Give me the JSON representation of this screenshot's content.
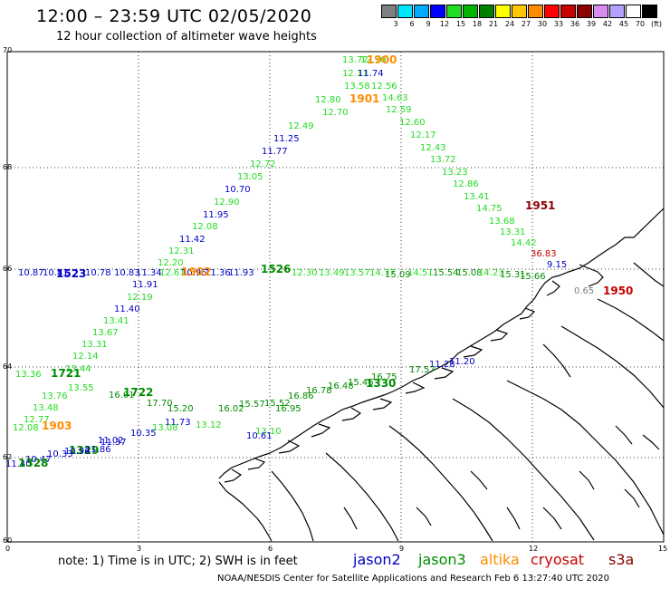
{
  "header": {
    "title": "12:00 – 23:59 UTC 02/05/2020",
    "subtitle": "12 hour collection of altimeter wave heights"
  },
  "colorbar": {
    "unit": "(ft)",
    "colors": [
      "#808080",
      "#00e5ff",
      "#00aaff",
      "#0000ff",
      "#22dd22",
      "#00b400",
      "#008000",
      "#ffff00",
      "#ffc800",
      "#ff8c00",
      "#ff0000",
      "#c80000",
      "#8b0000",
      "#d78cf0",
      "#b4a0ff",
      "#ffffff",
      "#000000"
    ],
    "labels": [
      "3",
      "6",
      "9",
      "12",
      "15",
      "18",
      "21",
      "24",
      "27",
      "30",
      "33",
      "36",
      "39",
      "42",
      "45",
      "70",
      "(ft)"
    ]
  },
  "axes": {
    "x_ticks": [
      "0",
      "3",
      "6",
      "9",
      "12",
      "15"
    ],
    "y_ticks": [
      "70",
      "68",
      "66",
      "64",
      "62",
      "60"
    ]
  },
  "footer": {
    "note": "note:  1) Time is in UTC;  2) SWH is in feet",
    "satellites": [
      {
        "name": "jason2",
        "color": "#0000c8"
      },
      {
        "name": "jason3",
        "color": "#008c00"
      },
      {
        "name": "altika",
        "color": "#ff8c00"
      },
      {
        "name": "cryosat",
        "color": "#c80000"
      },
      {
        "name": "s3a",
        "color": "#8b0000"
      }
    ],
    "credit": "NOAA/NESDIS Center for Satellite Applications and Research   Feb  6 13:27:40 UTC 2020"
  },
  "observations": [
    {
      "t": "13.72",
      "c": "#22dd22"
    },
    {
      "t": "12.70",
      "c": "#22dd22"
    },
    {
      "t": "1900",
      "c": "#ff8c00"
    },
    {
      "t": "12.11",
      "c": "#22dd22"
    },
    {
      "t": "11.74",
      "c": "#0000c8"
    },
    {
      "t": "13.58",
      "c": "#22dd22"
    },
    {
      "t": "12.56",
      "c": "#22dd22"
    },
    {
      "t": "12.80",
      "c": "#22dd22"
    },
    {
      "t": "1901",
      "c": "#ff8c00"
    },
    {
      "t": "14.63",
      "c": "#22dd22"
    },
    {
      "t": "12.70",
      "c": "#22dd22"
    },
    {
      "t": "12.59",
      "c": "#22dd22"
    },
    {
      "t": "12.49",
      "c": "#22dd22"
    },
    {
      "t": "12.60",
      "c": "#22dd22"
    },
    {
      "t": "11.25",
      "c": "#0000c8"
    },
    {
      "t": "12.17",
      "c": "#22dd22"
    },
    {
      "t": "11.77",
      "c": "#0000c8"
    },
    {
      "t": "12.43",
      "c": "#22dd22"
    },
    {
      "t": "12.72",
      "c": "#22dd22"
    },
    {
      "t": "13.72",
      "c": "#22dd22"
    },
    {
      "t": "13.05",
      "c": "#22dd22"
    },
    {
      "t": "13.23",
      "c": "#22dd22"
    },
    {
      "t": "10.70",
      "c": "#0000c8"
    },
    {
      "t": "12.86",
      "c": "#22dd22"
    },
    {
      "t": "13.41",
      "c": "#22dd22"
    },
    {
      "t": "12.90",
      "c": "#22dd22"
    },
    {
      "t": "14.75",
      "c": "#22dd22"
    },
    {
      "t": "1951",
      "c": "#8b0000"
    },
    {
      "t": "11.95",
      "c": "#0000c8"
    },
    {
      "t": "13.68",
      "c": "#22dd22"
    },
    {
      "t": "12.08",
      "c": "#22dd22"
    },
    {
      "t": "13.31",
      "c": "#22dd22"
    },
    {
      "t": "11.42",
      "c": "#0000c8"
    },
    {
      "t": "14.42",
      "c": "#22dd22"
    },
    {
      "t": "12.31",
      "c": "#22dd22"
    },
    {
      "t": "36.83",
      "c": "#c80000"
    },
    {
      "t": "12.20",
      "c": "#22dd22"
    },
    {
      "t": "9.15",
      "c": "#0000c8"
    },
    {
      "t": "10.87",
      "c": "#0000c8"
    },
    {
      "t": "10.81",
      "c": "#0000c8"
    },
    {
      "t": "1523",
      "c": "#0000c8"
    },
    {
      "t": "10.78",
      "c": "#0000c8"
    },
    {
      "t": "10.83",
      "c": "#0000c8"
    },
    {
      "t": "11.34",
      "c": "#0000c8"
    },
    {
      "t": "12.61",
      "c": "#22dd22"
    },
    {
      "t": "10.95",
      "c": "#0000c8"
    },
    {
      "t": "11.36",
      "c": "#0000c8"
    },
    {
      "t": "11.93",
      "c": "#0000c8"
    },
    {
      "t": "1526",
      "c": "#008c00"
    },
    {
      "t": "12.30",
      "c": "#22dd22"
    },
    {
      "t": "13.49",
      "c": "#22dd22"
    },
    {
      "t": "13.57",
      "c": "#22dd22"
    },
    {
      "t": "14.77",
      "c": "#22dd22"
    },
    {
      "t": "15.09",
      "c": "#008c00"
    },
    {
      "t": "14.51",
      "c": "#22dd22"
    },
    {
      "t": "15.54",
      "c": "#008c00"
    },
    {
      "t": "15.08",
      "c": "#008c00"
    },
    {
      "t": "14.23",
      "c": "#22dd22"
    },
    {
      "t": "15.31",
      "c": "#008c00"
    },
    {
      "t": "15.66",
      "c": "#008c00"
    },
    {
      "t": "1902",
      "c": "#ff8c00"
    },
    {
      "t": "11.91",
      "c": "#0000c8"
    },
    {
      "t": "0.65",
      "c": "#808080"
    },
    {
      "t": "1950",
      "c": "#c80000"
    },
    {
      "t": "12.19",
      "c": "#22dd22"
    },
    {
      "t": "11.40",
      "c": "#0000c8"
    },
    {
      "t": "13.41",
      "c": "#22dd22"
    },
    {
      "t": "13.67",
      "c": "#22dd22"
    },
    {
      "t": "13.31",
      "c": "#22dd22"
    },
    {
      "t": "12.14",
      "c": "#22dd22"
    },
    {
      "t": "13.44",
      "c": "#22dd22"
    },
    {
      "t": "11.28",
      "c": "#0000c8"
    },
    {
      "t": "11.20",
      "c": "#0000c8"
    },
    {
      "t": "13.36",
      "c": "#22dd22"
    },
    {
      "t": "1721",
      "c": "#008c00"
    },
    {
      "t": "17.57",
      "c": "#008c00"
    },
    {
      "t": "13.55",
      "c": "#22dd22"
    },
    {
      "t": "16.75",
      "c": "#008c00"
    },
    {
      "t": "15.46",
      "c": "#008c00"
    },
    {
      "t": "16.48",
      "c": "#008c00"
    },
    {
      "t": "1330",
      "c": "#008c00"
    },
    {
      "t": "13.76",
      "c": "#22dd22"
    },
    {
      "t": "16.01",
      "c": "#008c00"
    },
    {
      "t": "1722",
      "c": "#008c00"
    },
    {
      "t": "16.78",
      "c": "#008c00"
    },
    {
      "t": "16.86",
      "c": "#008c00"
    },
    {
      "t": "15.52",
      "c": "#008c00"
    },
    {
      "t": "17.70",
      "c": "#008c00"
    },
    {
      "t": "16.95",
      "c": "#008c00"
    },
    {
      "t": "13.48",
      "c": "#22dd22"
    },
    {
      "t": "15.20",
      "c": "#008c00"
    },
    {
      "t": "16.02",
      "c": "#008c00"
    },
    {
      "t": "15.57",
      "c": "#008c00"
    },
    {
      "t": "12.77",
      "c": "#22dd22"
    },
    {
      "t": "11.73",
      "c": "#0000c8"
    },
    {
      "t": "13.12",
      "c": "#22dd22"
    },
    {
      "t": "12.08",
      "c": "#22dd22"
    },
    {
      "t": "1903",
      "c": "#ff8c00"
    },
    {
      "t": "13.08",
      "c": "#22dd22"
    },
    {
      "t": "10.35",
      "c": "#0000c8"
    },
    {
      "t": "13.10",
      "c": "#22dd22"
    },
    {
      "t": "10.61",
      "c": "#0000c8"
    },
    {
      "t": "11.37",
      "c": "#0000c8"
    },
    {
      "t": "11.02",
      "c": "#0000c8"
    },
    {
      "t": "1329",
      "c": "#008c00"
    },
    {
      "t": "11.86",
      "c": "#0000c8"
    },
    {
      "t": "10.96",
      "c": "#0000c8"
    },
    {
      "t": "10.33",
      "c": "#0000c8"
    },
    {
      "t": "10.47",
      "c": "#0000c8"
    },
    {
      "t": "11.40",
      "c": "#0000c8"
    },
    {
      "t": "1328",
      "c": "#008c00"
    }
  ]
}
